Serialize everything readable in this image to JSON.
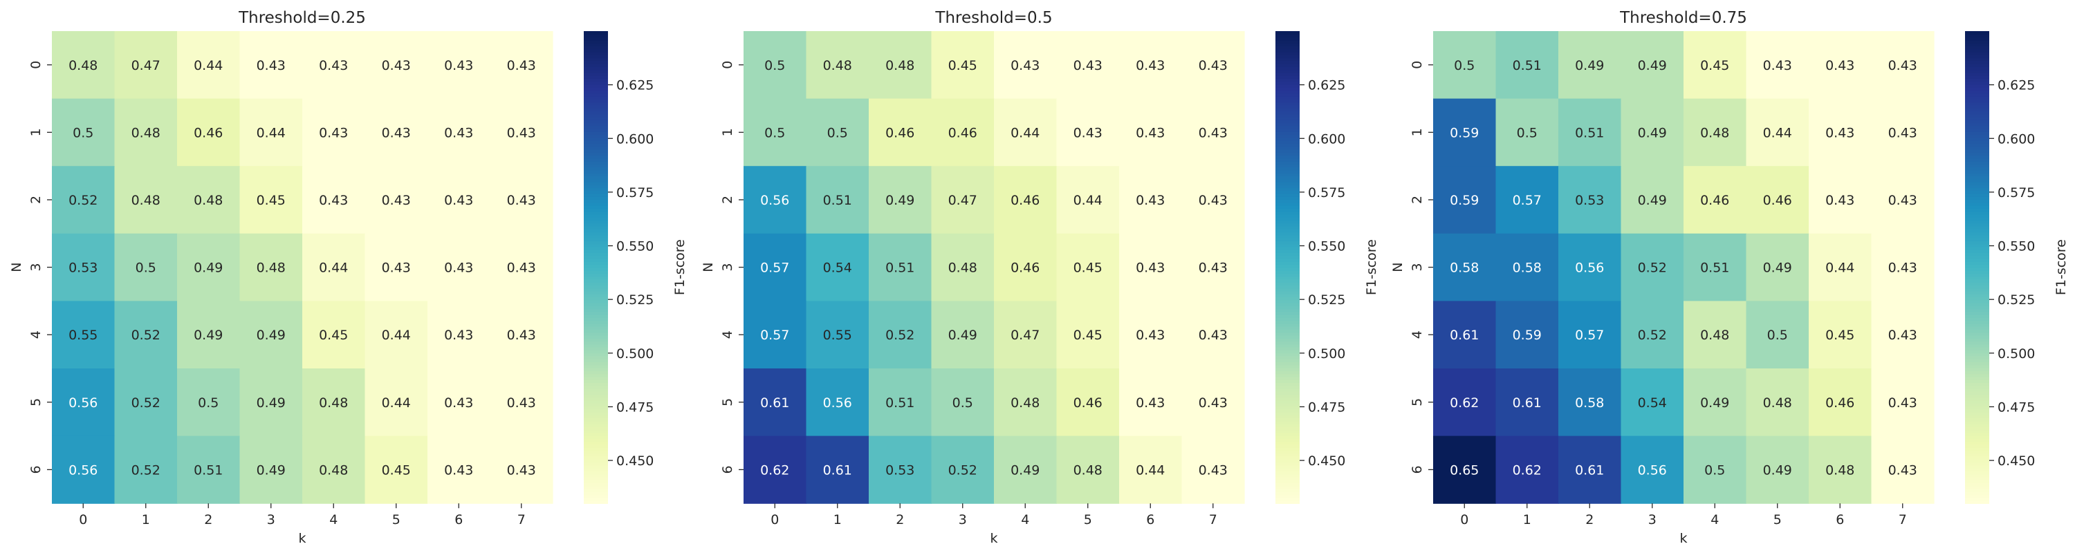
{
  "colormap": [
    "#ffffd9",
    "#edf8b1",
    "#c7e9b4",
    "#7fcdbb",
    "#41b6c4",
    "#1d91c0",
    "#225ea8",
    "#253494",
    "#081d58"
  ],
  "chart_data": [
    {
      "type": "heatmap",
      "title": "Threshold=0.25",
      "xlabel": "k",
      "ylabel": "N",
      "x_categories": [
        "0",
        "1",
        "2",
        "3",
        "4",
        "5",
        "6",
        "7"
      ],
      "y_categories": [
        "0",
        "1",
        "2",
        "3",
        "4",
        "5",
        "6"
      ],
      "values": [
        [
          0.48,
          0.47,
          0.44,
          0.43,
          0.43,
          0.43,
          0.43,
          0.43
        ],
        [
          0.5,
          0.48,
          0.46,
          0.44,
          0.43,
          0.43,
          0.43,
          0.43
        ],
        [
          0.52,
          0.48,
          0.48,
          0.45,
          0.43,
          0.43,
          0.43,
          0.43
        ],
        [
          0.53,
          0.5,
          0.49,
          0.48,
          0.44,
          0.43,
          0.43,
          0.43
        ],
        [
          0.55,
          0.52,
          0.49,
          0.49,
          0.45,
          0.44,
          0.43,
          0.43
        ],
        [
          0.56,
          0.52,
          0.5,
          0.49,
          0.48,
          0.44,
          0.43,
          0.43
        ],
        [
          0.56,
          0.52,
          0.51,
          0.49,
          0.48,
          0.45,
          0.43,
          0.43
        ]
      ],
      "colorbar": {
        "label": "F1-score",
        "range": [
          0.43,
          0.65
        ],
        "ticks": [
          "0.450",
          "0.475",
          "0.500",
          "0.525",
          "0.550",
          "0.575",
          "0.600",
          "0.625"
        ]
      }
    },
    {
      "type": "heatmap",
      "title": "Threshold=0.5",
      "xlabel": "k",
      "ylabel": "N",
      "x_categories": [
        "0",
        "1",
        "2",
        "3",
        "4",
        "5",
        "6",
        "7"
      ],
      "y_categories": [
        "0",
        "1",
        "2",
        "3",
        "4",
        "5",
        "6"
      ],
      "values": [
        [
          0.5,
          0.48,
          0.48,
          0.45,
          0.43,
          0.43,
          0.43,
          0.43
        ],
        [
          0.5,
          0.5,
          0.46,
          0.46,
          0.44,
          0.43,
          0.43,
          0.43
        ],
        [
          0.56,
          0.51,
          0.49,
          0.47,
          0.46,
          0.44,
          0.43,
          0.43
        ],
        [
          0.57,
          0.54,
          0.51,
          0.48,
          0.46,
          0.45,
          0.43,
          0.43
        ],
        [
          0.57,
          0.55,
          0.52,
          0.49,
          0.47,
          0.45,
          0.43,
          0.43
        ],
        [
          0.61,
          0.56,
          0.51,
          0.5,
          0.48,
          0.46,
          0.43,
          0.43
        ],
        [
          0.62,
          0.61,
          0.53,
          0.52,
          0.49,
          0.48,
          0.44,
          0.43
        ]
      ],
      "colorbar": {
        "label": "F1-score",
        "range": [
          0.43,
          0.65
        ],
        "ticks": [
          "0.450",
          "0.475",
          "0.500",
          "0.525",
          "0.550",
          "0.575",
          "0.600",
          "0.625"
        ]
      }
    },
    {
      "type": "heatmap",
      "title": "Threshold=0.75",
      "xlabel": "k",
      "ylabel": "N",
      "x_categories": [
        "0",
        "1",
        "2",
        "3",
        "4",
        "5",
        "6",
        "7"
      ],
      "y_categories": [
        "0",
        "1",
        "2",
        "3",
        "4",
        "5",
        "6"
      ],
      "values": [
        [
          0.5,
          0.51,
          0.49,
          0.49,
          0.45,
          0.43,
          0.43,
          0.43
        ],
        [
          0.59,
          0.5,
          0.51,
          0.49,
          0.48,
          0.44,
          0.43,
          0.43
        ],
        [
          0.59,
          0.57,
          0.53,
          0.49,
          0.46,
          0.46,
          0.43,
          0.43
        ],
        [
          0.58,
          0.58,
          0.56,
          0.52,
          0.51,
          0.49,
          0.44,
          0.43
        ],
        [
          0.61,
          0.59,
          0.57,
          0.52,
          0.48,
          0.5,
          0.45,
          0.43
        ],
        [
          0.62,
          0.61,
          0.58,
          0.54,
          0.49,
          0.48,
          0.46,
          0.43
        ],
        [
          0.65,
          0.62,
          0.61,
          0.56,
          0.5,
          0.49,
          0.48,
          0.43
        ]
      ],
      "colorbar": {
        "label": "F1-score",
        "range": [
          0.43,
          0.65
        ],
        "ticks": [
          "0.450",
          "0.475",
          "0.500",
          "0.525",
          "0.550",
          "0.575",
          "0.600",
          "0.625"
        ]
      }
    }
  ]
}
